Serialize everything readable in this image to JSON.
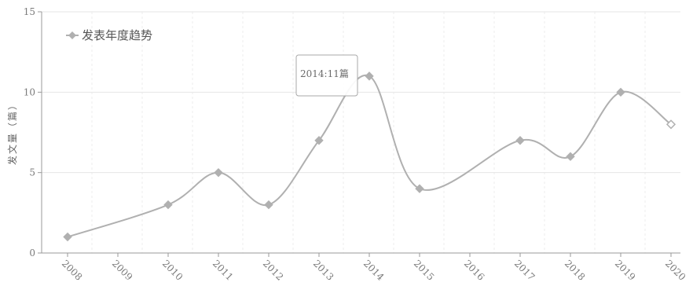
{
  "chart_data": {
    "type": "line",
    "title": "",
    "xlabel": "",
    "ylabel": "发文量（篇）",
    "ylim": [
      0,
      15
    ],
    "yticks": [
      0,
      5,
      10,
      15
    ],
    "grid": true,
    "legend_position": "top-left",
    "categories": [
      "2008",
      "2009",
      "2010",
      "2011",
      "2012",
      "2013",
      "2014",
      "2015",
      "2016",
      "2017",
      "2018",
      "2019",
      "2020"
    ],
    "series": [
      {
        "name": "发表年度趋势",
        "values": [
          1,
          null,
          3,
          5,
          3,
          7,
          11,
          4,
          null,
          7,
          6,
          10,
          8
        ]
      }
    ],
    "tooltip": "2014:11篇",
    "color": "#b0b0b0"
  }
}
